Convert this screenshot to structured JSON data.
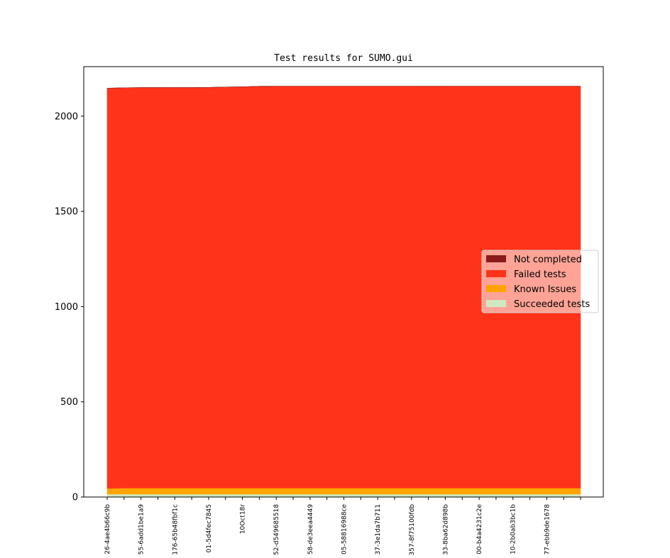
{
  "chart_data": {
    "type": "area",
    "stacked": true,
    "title": "Test results for SUMO.gui",
    "xlabel": "",
    "ylabel": "",
    "ylim": [
      0,
      2260
    ],
    "yticks": [
      0,
      500,
      1000,
      1500,
      2000
    ],
    "x_ticklabels": [
      "26-4ae4b66c9b",
      "55-6add1be1a9",
      "176-65b48fbf1c",
      "01-5d4fec7845",
      "10Oct18r",
      "52-d549685518",
      "58-de3eea4449",
      "05-58816988ce",
      "37-3e1da7b711",
      "357-8f75100fdb",
      "33-8ba62d898b",
      "00-b4a4231c2e",
      "10-2b0ab3bc1b",
      "77-ebb9de1678"
    ],
    "x_count": 29,
    "legend_position": "center-right",
    "series": [
      {
        "name": "Succeeded tests",
        "color": "#d0e8c0",
        "values": [
          15,
          15,
          15,
          15,
          15,
          15,
          15,
          15,
          15,
          15,
          15,
          15,
          15,
          15,
          15,
          15,
          15,
          15,
          15,
          15,
          15,
          15,
          15,
          15,
          15,
          15,
          15,
          15,
          15
        ]
      },
      {
        "name": "Known Issues",
        "color": "#ffa500",
        "values": [
          30,
          32,
          32,
          32,
          32,
          32,
          32,
          32,
          32,
          32,
          32,
          32,
          32,
          32,
          32,
          32,
          32,
          32,
          32,
          32,
          32,
          32,
          32,
          32,
          32,
          32,
          32,
          32,
          32
        ]
      },
      {
        "name": "Failed tests",
        "color": "#ff331a",
        "values": [
          2102,
          2102,
          2103,
          2103,
          2103,
          2103,
          2104,
          2106,
          2107,
          2110,
          2110,
          2110,
          2110,
          2110,
          2110,
          2110,
          2110,
          2110,
          2110,
          2110,
          2110,
          2110,
          2110,
          2110,
          2110,
          2110,
          2110,
          2110,
          2110
        ]
      },
      {
        "name": "Not completed",
        "color": "#8b1a1a",
        "values": [
          0,
          0,
          0,
          0,
          0,
          0,
          0,
          0,
          0,
          0,
          0,
          0,
          0,
          0,
          0,
          0,
          0,
          0,
          0,
          0,
          0,
          0,
          0,
          0,
          0,
          0,
          0,
          0,
          0
        ]
      }
    ],
    "legend_order": [
      "Not completed",
      "Failed tests",
      "Known Issues",
      "Succeeded tests"
    ]
  }
}
